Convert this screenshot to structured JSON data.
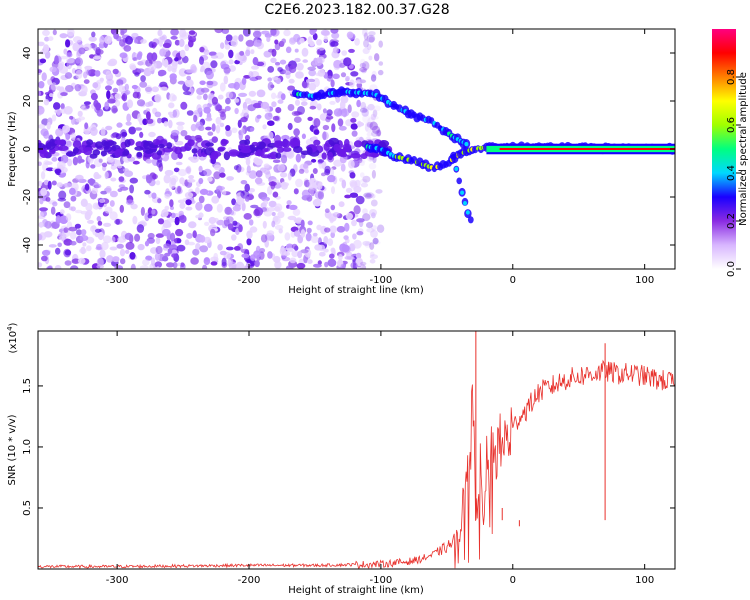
{
  "title": "C2E6.2023.182.00.37.G28",
  "chart_data": [
    {
      "type": "heatmap",
      "xlabel": "Height of straight line (km)",
      "ylabel": "Frequency (Hz)",
      "xlim": [
        -360,
        123
      ],
      "ylim": [
        -50,
        50
      ],
      "xticks": [
        -300,
        -200,
        -100,
        0,
        100
      ],
      "yticks": [
        -40,
        -20,
        0,
        20,
        40
      ],
      "colorbar": {
        "label": "Normalized spectral amplitude",
        "range": [
          0,
          1
        ],
        "ticks": [
          "0.0",
          "0.2",
          "0.4",
          "0.6",
          "0.8"
        ],
        "colormap": [
          "#ffffff",
          "#d8b6ff",
          "#8a2be2",
          "#1a00ff",
          "#00d8ff",
          "#00ff80",
          "#a0ff00",
          "#ffff00",
          "#ff8000",
          "#ff0000",
          "#ff0080"
        ]
      },
      "noise_region_x": [
        -360,
        -100
      ],
      "features": [
        {
          "name": "upper trace",
          "points": [
            [
              -165,
              23
            ],
            [
              -150,
              22
            ],
            [
              -130,
              24
            ],
            [
              -105,
              23
            ],
            [
              -90,
              18
            ],
            [
              -75,
              14
            ],
            [
              -60,
              11
            ],
            [
              -45,
              5
            ],
            [
              -35,
              2
            ]
          ]
        },
        {
          "name": "lower trace",
          "points": [
            [
              -110,
              1
            ],
            [
              -100,
              0
            ],
            [
              -90,
              -3
            ],
            [
              -75,
              -5
            ],
            [
              -60,
              -8
            ],
            [
              -50,
              -6
            ],
            [
              -40,
              -2
            ],
            [
              -30,
              0
            ],
            [
              -15,
              1
            ],
            [
              0,
              1
            ],
            [
              123,
              0
            ]
          ]
        },
        {
          "name": "descending branch",
          "points": [
            [
              -45,
              -3
            ],
            [
              -40,
              -15
            ],
            [
              -35,
              -25
            ],
            [
              -30,
              -32
            ]
          ]
        },
        {
          "name": "carrier line",
          "points": [
            [
              -20,
              0
            ],
            [
              123,
              0
            ]
          ]
        }
      ]
    },
    {
      "type": "line",
      "xlabel": "Height of straight line (km)",
      "ylabel": "SNR (10 * v/v)",
      "yscale_label": "(x10",
      "yscale_exp": "4",
      "xlim": [
        -360,
        123
      ],
      "ylim": [
        0,
        1.95
      ],
      "xticks": [
        -300,
        -200,
        -100,
        0,
        100
      ],
      "yticks": [
        "0.5",
        "1.0",
        "1.5"
      ],
      "color": "#e8312c",
      "series": [
        {
          "x": [
            -360,
            -300,
            -200,
            -150,
            -100,
            -80,
            -70,
            -60,
            -50,
            -45,
            -40,
            -35,
            -32,
            -30,
            -28,
            -25,
            -22,
            -20,
            -15,
            -10,
            -5,
            0,
            5,
            10,
            20,
            30,
            40,
            50,
            60,
            70,
            80,
            90,
            100,
            110,
            123
          ],
          "y": [
            0.02,
            0.02,
            0.03,
            0.03,
            0.04,
            0.06,
            0.08,
            0.12,
            0.18,
            0.22,
            0.3,
            0.8,
            1.1,
            1.25,
            0.4,
            0.9,
            0.3,
            0.85,
            0.95,
            1.0,
            1.05,
            1.15,
            1.25,
            1.3,
            1.45,
            1.5,
            1.55,
            1.58,
            1.6,
            1.62,
            1.6,
            1.6,
            1.58,
            1.55,
            1.53
          ]
        }
      ],
      "spikes": [
        [
          -28,
          2.0
        ],
        [
          -8,
          0.5
        ],
        [
          5,
          0.35
        ],
        [
          70,
          1.85
        ]
      ]
    }
  ]
}
